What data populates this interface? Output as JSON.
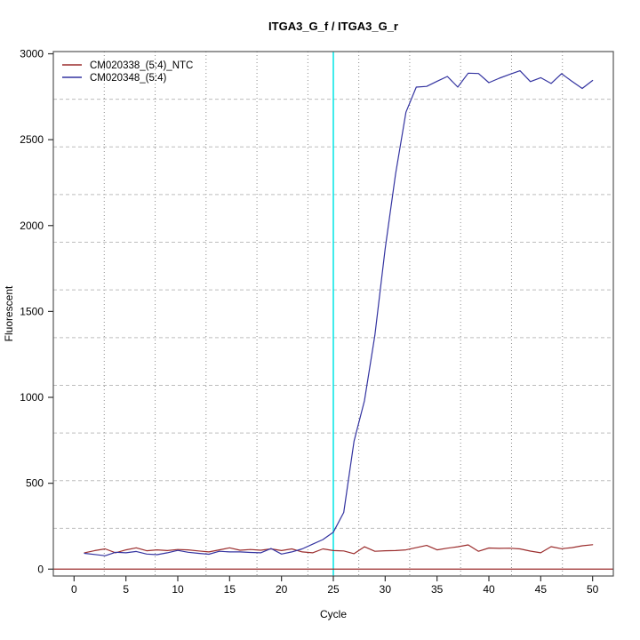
{
  "chart_data": {
    "type": "line",
    "title": "ITGA3_G_f / ITGA3_G_r",
    "xlabel": "Cycle",
    "ylabel": "Fluorescent",
    "x": [
      1,
      2,
      3,
      4,
      5,
      6,
      7,
      8,
      9,
      10,
      11,
      12,
      13,
      14,
      15,
      16,
      17,
      18,
      19,
      20,
      21,
      22,
      23,
      24,
      25,
      26,
      27,
      28,
      29,
      30,
      31,
      32,
      33,
      34,
      35,
      36,
      37,
      38,
      39,
      40,
      41,
      42,
      43,
      44,
      45,
      46,
      47,
      48,
      49,
      50
    ],
    "series": [
      {
        "name": "CM020338_(5:4)_NTC",
        "color": "#9B2D2D",
        "values": [
          95,
          108,
          118,
          95,
          112,
          124,
          107,
          112,
          108,
          114,
          112,
          106,
          100,
          112,
          124,
          110,
          114,
          110,
          118,
          108,
          118,
          100,
          95,
          118,
          108,
          106,
          90,
          130,
          104,
          107,
          108,
          112,
          125,
          138,
          112,
          122,
          130,
          141,
          104,
          123,
          121,
          122,
          118,
          105,
          95,
          131,
          119,
          125,
          136,
          142
        ]
      },
      {
        "name": "CM020348_(5:4)",
        "color": "#3333A0",
        "values": [
          92,
          85,
          78,
          98,
          95,
          103,
          88,
          84,
          95,
          109,
          98,
          92,
          87,
          104,
          100,
          100,
          97,
          95,
          120,
          88,
          100,
          118,
          145,
          172,
          215,
          330,
          745,
          980,
          1360,
          1865,
          2300,
          2660,
          2806,
          2810,
          2840,
          2868,
          2806,
          2887,
          2885,
          2832,
          2858,
          2880,
          2901,
          2838,
          2861,
          2827,
          2884,
          2840,
          2798,
          2845
        ]
      }
    ],
    "x_ticks": [
      0,
      5,
      10,
      15,
      20,
      25,
      30,
      35,
      40,
      45,
      50
    ],
    "y_ticks": [
      0,
      500,
      1000,
      1500,
      2000,
      2500,
      3000
    ],
    "xlim": [
      -2,
      52
    ],
    "ylim": [
      -40,
      3013
    ],
    "grid": {
      "on": true,
      "cells_x": 11,
      "cells_y": 11,
      "v_color": "#8a8a8a",
      "h_color": "#bdbdbd"
    },
    "threshold_line": {
      "x": 25,
      "color": "#00E6E6"
    },
    "zero_line": {
      "y": 0,
      "color": "#9B2D2D"
    },
    "legend": {
      "position": "top-left"
    },
    "axis_color": "#555555",
    "tick_color": "#333333"
  }
}
